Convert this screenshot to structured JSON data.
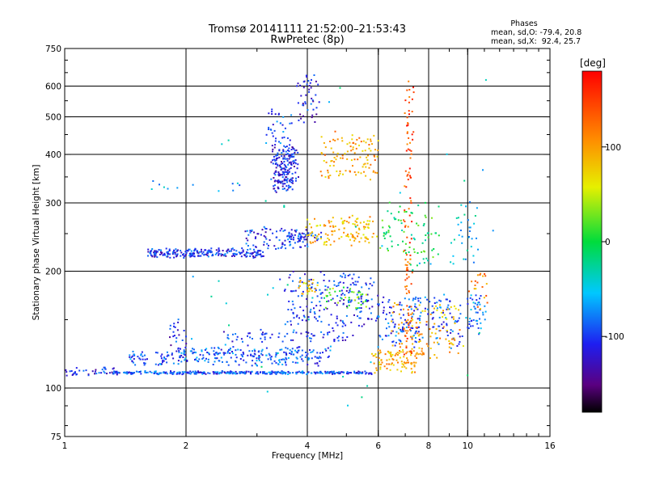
{
  "chart_data": {
    "type": "scatter",
    "title": "Tromsø 20141111 21:52:00–21:53:43",
    "subtitle": "RwPretec (8p)",
    "xlabel": "Frequency [MHz]",
    "ylabel": "Stationary phase Virtual Height [km]",
    "x_scale": "log",
    "y_scale": "log",
    "xlim": [
      1,
      16
    ],
    "ylim": [
      75,
      750
    ],
    "x_ticks": [
      1,
      2,
      4,
      6,
      8,
      10,
      16
    ],
    "x_tick_labels": [
      "1",
      "2",
      "4",
      "6",
      "8",
      "10",
      "16"
    ],
    "y_ticks": [
      75,
      100,
      200,
      300,
      400,
      500,
      600,
      750
    ],
    "y_tick_labels": [
      "75",
      "100",
      "200",
      "300",
      "400",
      "500",
      "600",
      "750"
    ],
    "grid": true,
    "x_gridlines": [
      2,
      4,
      6,
      8,
      10
    ],
    "y_gridlines": [
      100,
      200,
      300,
      400,
      500,
      600
    ],
    "phases_box": {
      "title": "Phases",
      "line_o": "mean, sd,O: -79.4, 20.8",
      "line_x": "mean, sd,X:  92.4, 25.7"
    },
    "colorbar": {
      "label": "[deg]",
      "min": -180,
      "max": 180,
      "ticks": [
        100,
        0,
        -100
      ],
      "tick_labels": [
        "100",
        "0",
        "-100"
      ],
      "colormap": "rainbow"
    },
    "clusters": [
      {
        "f1": 1.0,
        "f2": 1.35,
        "h1": 108,
        "h2": 112,
        "pv": -110,
        "n": 40,
        "sp": 0.02
      },
      {
        "f1": 1.3,
        "f2": 5.8,
        "h1": 109,
        "h2": 110,
        "pv": -95,
        "n": 330,
        "sp": 0.012
      },
      {
        "f1": 5.8,
        "f2": 7.5,
        "h1": 110,
        "h2": 125,
        "pv": 95,
        "n": 90,
        "sp": 0.02
      },
      {
        "f1": 1.45,
        "f2": 4.3,
        "h1": 115,
        "h2": 124,
        "pv": -90,
        "n": 190,
        "sp": 0.02
      },
      {
        "f1": 1.9,
        "f2": 4.6,
        "h1": 120,
        "h2": 128,
        "pv": -92,
        "n": 110,
        "sp": 0.022
      },
      {
        "f1": 2.5,
        "f2": 5.2,
        "h1": 132,
        "h2": 140,
        "pv": -100,
        "n": 70,
        "sp": 0.025
      },
      {
        "f1": 1.8,
        "f2": 2.0,
        "h1": 130,
        "h2": 150,
        "pv": -110,
        "n": 20,
        "sp": 0.03
      },
      {
        "f1": 3.5,
        "f2": 5.9,
        "h1": 145,
        "h2": 200,
        "pv": -105,
        "n": 200,
        "sp": 0.05
      },
      {
        "f1": 3.8,
        "f2": 4.2,
        "h1": 175,
        "h2": 190,
        "pv": 80,
        "n": 25,
        "sp": 0.03
      },
      {
        "f1": 4.4,
        "f2": 5.6,
        "h1": 160,
        "h2": 180,
        "pv": 30,
        "n": 40,
        "sp": 0.04
      },
      {
        "f1": 6.0,
        "f2": 9.6,
        "h1": 130,
        "h2": 170,
        "pv": -95,
        "n": 180,
        "sp": 0.06
      },
      {
        "f1": 6.5,
        "f2": 9.5,
        "h1": 120,
        "h2": 165,
        "pv": 95,
        "n": 110,
        "sp": 0.06
      },
      {
        "f1": 10.0,
        "f2": 11.0,
        "h1": 140,
        "h2": 175,
        "pv": -80,
        "n": 45,
        "sp": 0.04
      },
      {
        "f1": 10.2,
        "f2": 11.3,
        "h1": 160,
        "h2": 200,
        "pv": 110,
        "n": 20,
        "sp": 0.04
      },
      {
        "f1": 1.6,
        "f2": 3.1,
        "h1": 218,
        "h2": 228,
        "pv": -105,
        "n": 230,
        "sp": 0.02
      },
      {
        "f1": 2.8,
        "f2": 4.0,
        "h1": 228,
        "h2": 258,
        "pv": -100,
        "n": 90,
        "sp": 0.025
      },
      {
        "f1": 3.6,
        "f2": 4.3,
        "h1": 240,
        "h2": 250,
        "pv": -105,
        "n": 40,
        "sp": 0.025
      },
      {
        "f1": 4.0,
        "f2": 5.9,
        "h1": 235,
        "h2": 275,
        "pv": 90,
        "n": 120,
        "sp": 0.04
      },
      {
        "f1": 6.1,
        "f2": 8.5,
        "h1": 215,
        "h2": 300,
        "pv": 0,
        "n": 80,
        "sp": 0.06
      },
      {
        "f1": 9.2,
        "f2": 10.6,
        "h1": 205,
        "h2": 300,
        "pv": -50,
        "n": 35,
        "sp": 0.06
      },
      {
        "f1": 3.3,
        "f2": 3.75,
        "h1": 325,
        "h2": 420,
        "pv": -110,
        "n": 200,
        "sp": 0.04
      },
      {
        "f1": 3.2,
        "f2": 3.6,
        "h1": 430,
        "h2": 520,
        "pv": -90,
        "n": 35,
        "sp": 0.04
      },
      {
        "f1": 4.3,
        "f2": 6.0,
        "h1": 350,
        "h2": 450,
        "pv": 100,
        "n": 110,
        "sp": 0.04
      },
      {
        "f1": 3.8,
        "f2": 4.3,
        "h1": 480,
        "h2": 640,
        "pv": -110,
        "n": 45,
        "sp": 0.035
      },
      {
        "f1": 7.0,
        "f2": 7.3,
        "h1": 120,
        "h2": 620,
        "pv": 140,
        "n": 110,
        "sp": 0.02
      },
      {
        "f1": 1.6,
        "f2": 2.9,
        "h1": 320,
        "h2": 340,
        "pv": -60,
        "n": 12,
        "sp": 0.03
      },
      {
        "f1": 2.0,
        "f2": 11.5,
        "h1": 85,
        "h2": 650,
        "pv": -40,
        "n": 45,
        "sp": 0.05
      }
    ]
  }
}
